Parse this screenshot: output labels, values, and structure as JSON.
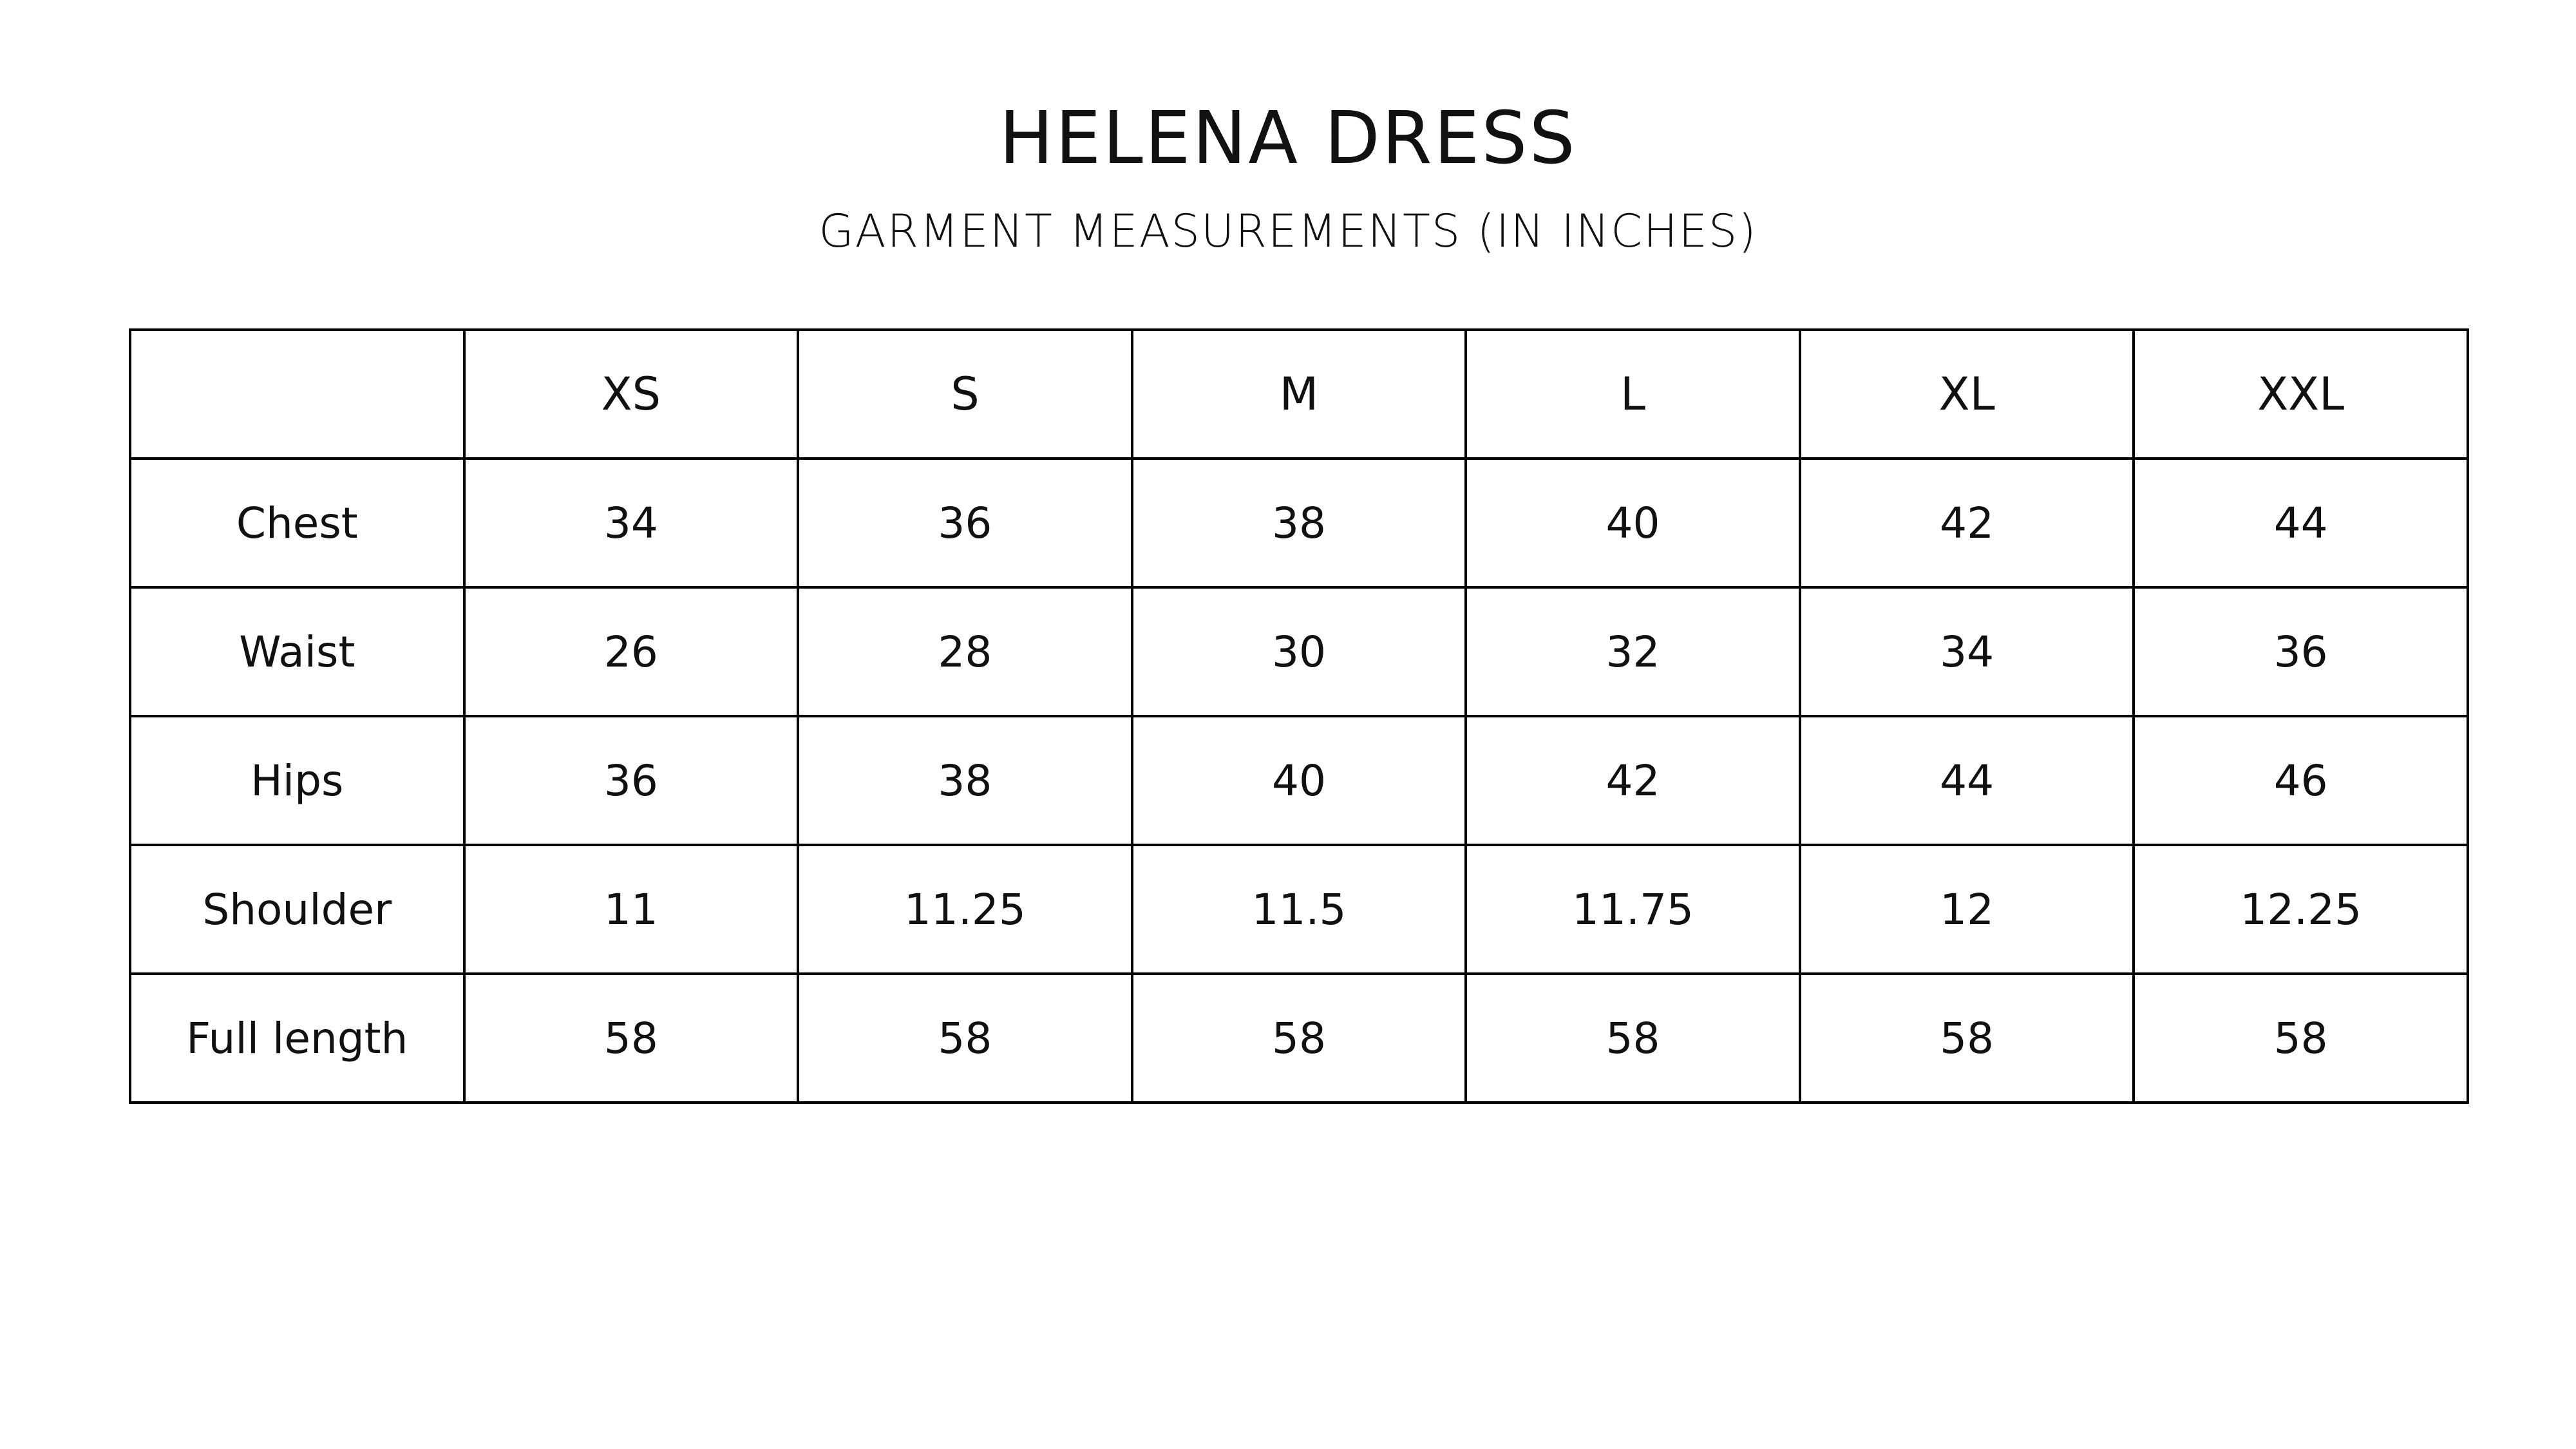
{
  "title": "HELENA DRESS",
  "subtitle": "GARMENT MEASUREMENTS (IN INCHES)",
  "table": {
    "corner": "",
    "headers": [
      "XS",
      "S",
      "M",
      "L",
      "XL",
      "XXL"
    ],
    "rows": [
      {
        "label": "Chest",
        "values": [
          "34",
          "36",
          "38",
          "40",
          "42",
          "44"
        ]
      },
      {
        "label": "Waist",
        "values": [
          "26",
          "28",
          "30",
          "32",
          "34",
          "36"
        ]
      },
      {
        "label": "Hips",
        "values": [
          "36",
          "38",
          "40",
          "42",
          "44",
          "46"
        ]
      },
      {
        "label": "Shoulder",
        "values": [
          "11",
          "11.25",
          "11.5",
          "11.75",
          "12",
          "12.25"
        ]
      },
      {
        "label": "Full length",
        "values": [
          "58",
          "58",
          "58",
          "58",
          "58",
          "58"
        ]
      }
    ]
  }
}
